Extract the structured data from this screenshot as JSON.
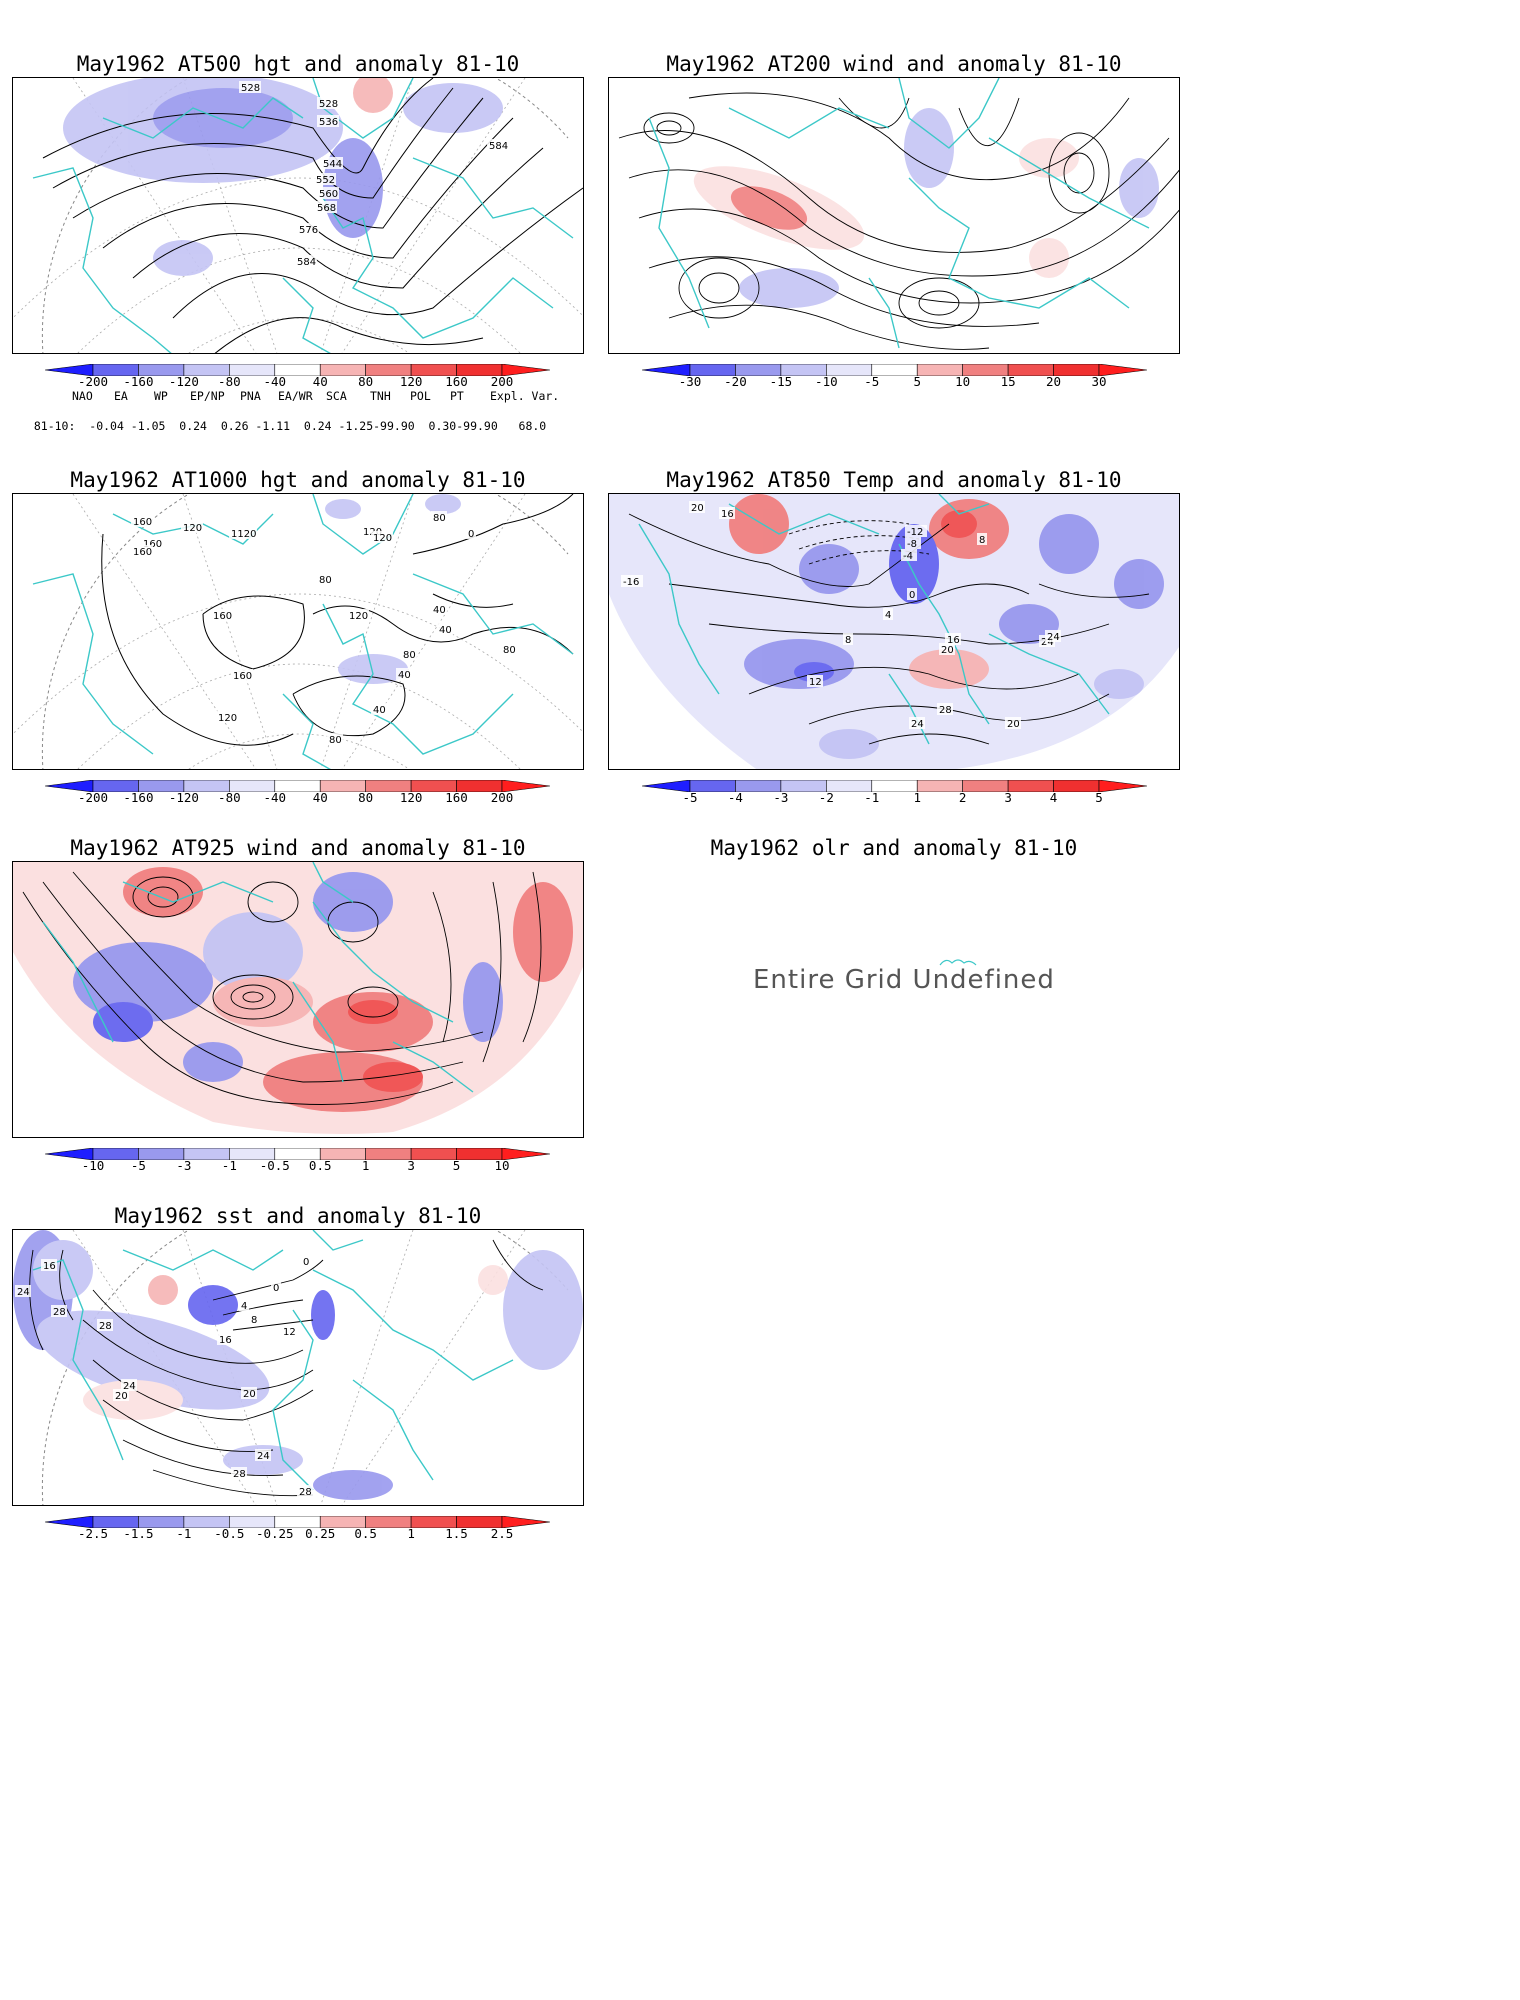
{
  "panels": {
    "at500": {
      "title": "May1962 AT500 hgt and anomaly 81-10",
      "contour_labels": [
        "528",
        "528",
        "536",
        "544",
        "552",
        "560",
        "568",
        "576",
        "584",
        "584"
      ],
      "colorbar": [
        "-200",
        "-160",
        "-120",
        "-80",
        "-40",
        "40",
        "80",
        "120",
        "160",
        "200"
      ]
    },
    "at200": {
      "title": "May1962 AT200 wind and anomaly 81-10",
      "colorbar": [
        "-30",
        "-20",
        "-15",
        "-10",
        "-5",
        "5",
        "10",
        "15",
        "20",
        "30"
      ]
    },
    "at1000": {
      "title": "May1962 AT1000 hgt and anomaly 81-10",
      "contour_labels": [
        "120",
        "1120",
        "160",
        "160",
        "160",
        "120",
        "80",
        "120",
        "40",
        "80",
        "0",
        "160",
        "160",
        "120",
        "120",
        "40",
        "80",
        "80",
        "40",
        "40",
        "80"
      ],
      "colorbar": [
        "-200",
        "-160",
        "-120",
        "-80",
        "-40",
        "40",
        "80",
        "120",
        "160",
        "200"
      ]
    },
    "at850": {
      "title": "May1962 AT850 Temp and anomaly 81-10",
      "contour_labels": [
        "20",
        "16",
        "-16",
        "-12",
        "-8",
        "-4",
        "0",
        "8",
        "4",
        "8",
        "12",
        "16",
        "20",
        "24",
        "24",
        "28",
        "24",
        "20"
      ],
      "colorbar": [
        "-5",
        "-4",
        "-3",
        "-2",
        "-1",
        "1",
        "2",
        "3",
        "4",
        "5"
      ]
    },
    "at925": {
      "title": "May1962 AT925 wind and anomaly 81-10",
      "colorbar": [
        "-10",
        "-5",
        "-3",
        "-1",
        "-0.5",
        "0.5",
        "1",
        "3",
        "5",
        "10"
      ]
    },
    "olr": {
      "title": "May1962 olr and anomaly 81-10",
      "message": "Entire Grid Undefined"
    },
    "sst": {
      "title": "May1962 sst and anomaly 81-10",
      "contour_labels": [
        "24",
        "28",
        "28",
        "0",
        "0",
        "4",
        "8",
        "12",
        "16",
        "20",
        "24",
        "28",
        "28",
        "24",
        "20",
        "16"
      ],
      "colorbar": [
        "-2.5",
        "-1.5",
        "-1",
        "-0.5",
        "-0.25",
        "0.25",
        "0.5",
        "1",
        "1.5",
        "2.5"
      ]
    }
  },
  "indices": {
    "header": [
      "NAO",
      "EA",
      "WP",
      "EP/NP",
      "PNA",
      "EA/WR",
      "SCA",
      "TNH",
      "POL",
      "PT",
      "Expl. Var."
    ],
    "row_label": "81-10:",
    "values": "-0.04 -1.05  0.24  0.26 -1.11  0.24 -1.25-99.90  0.30-99.90   68.0"
  },
  "colors": {
    "coast": "#3cc8c8",
    "neg": [
      "#3232ff",
      "#6666f0",
      "#9999ee",
      "#c4c4f4",
      "#e6e6fa"
    ],
    "pos": [
      "#fbe0e0",
      "#f6b4b4",
      "#f08080",
      "#f05050",
      "#f03030"
    ]
  }
}
